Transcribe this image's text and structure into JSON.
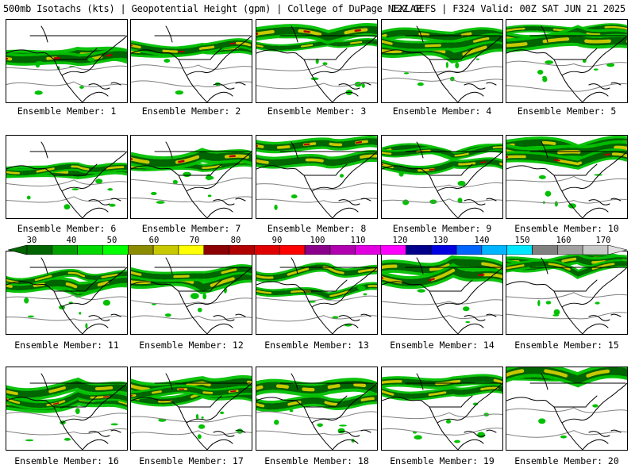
{
  "header": {
    "left_title": "500mb Isotachs (kts) | Geopotential Height (gpm) | College of DuPage NEXLAB",
    "right_title": "12Z GEFS | F324 Valid: 00Z SAT JUN 21 2025"
  },
  "colorbar": {
    "tick_labels": [
      "30",
      "40",
      "50",
      "60",
      "70",
      "80",
      "90",
      "100",
      "110",
      "120",
      "130",
      "140",
      "150",
      "160",
      "170"
    ],
    "colors": [
      "#006400",
      "#00a000",
      "#00d800",
      "#00ff00",
      "#8b8b00",
      "#c8c800",
      "#ffff00",
      "#8b0000",
      "#b00000",
      "#e00000",
      "#ff0000",
      "#8b008b",
      "#b000b0",
      "#e000e0",
      "#ff00ff",
      "#00008b",
      "#0000e0",
      "#0064ff",
      "#00b4ff",
      "#00e6ff",
      "#808080",
      "#a0a0a0",
      "#c8c8c8"
    ]
  },
  "map_colors": {
    "land_line": "#000000",
    "height_contour": "#808080",
    "jet_green": "#00c000",
    "jet_dark": "#006400",
    "jet_yellow": "#c8c800",
    "jet_red": "#b00000"
  },
  "panels": [
    {
      "label": "Ensemble Member: 1"
    },
    {
      "label": "Ensemble Member: 2"
    },
    {
      "label": "Ensemble Member: 3"
    },
    {
      "label": "Ensemble Member: 4"
    },
    {
      "label": "Ensemble Member: 5"
    },
    {
      "label": "Ensemble Member: 6"
    },
    {
      "label": "Ensemble Member: 7"
    },
    {
      "label": "Ensemble Member: 8"
    },
    {
      "label": "Ensemble Member: 9"
    },
    {
      "label": "Ensemble Member: 10"
    },
    {
      "label": "Ensemble Member: 11"
    },
    {
      "label": "Ensemble Member: 12"
    },
    {
      "label": "Ensemble Member: 13"
    },
    {
      "label": "Ensemble Member: 14"
    },
    {
      "label": "Ensemble Member: 15"
    },
    {
      "label": "Ensemble Member: 16"
    },
    {
      "label": "Ensemble Member: 17"
    },
    {
      "label": "Ensemble Member: 18"
    },
    {
      "label": "Ensemble Member: 19"
    },
    {
      "label": "Ensemble Member: 20"
    }
  ]
}
